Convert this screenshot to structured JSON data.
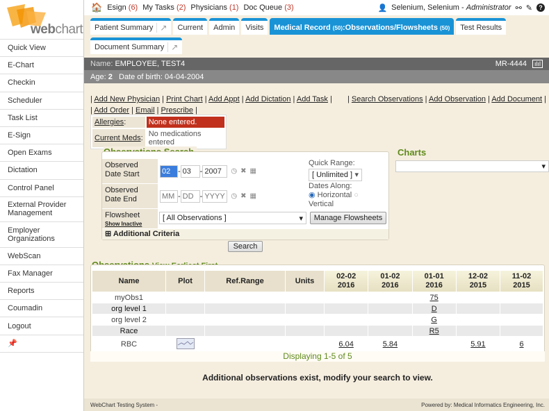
{
  "logo": {
    "text": "webchart",
    "brand_color": "#f5a21b"
  },
  "sidebar": {
    "items": [
      "Quick View",
      "E-Chart",
      "Checkin",
      "Scheduler",
      "Task List",
      "E-Sign",
      "Open Exams",
      "Dictation",
      "Control Panel",
      "External Provider Management",
      "Employer Organizations",
      "WebScan",
      "Fax Manager",
      "Reports",
      "Coumadin",
      "Logout"
    ],
    "pin_icon": "pin-icon"
  },
  "topbar": {
    "items": [
      {
        "label": "Esign",
        "count": "(6)"
      },
      {
        "label": "My Tasks",
        "count": "(2)"
      },
      {
        "label": "Physicians",
        "count": "(1)"
      },
      {
        "label": "Doc Queue",
        "count": "(3)"
      }
    ],
    "user": "Selenium, Selenium",
    "role": "Administrator"
  },
  "tabs": {
    "row1": [
      {
        "label": "Patient Summary"
      },
      {
        "label": "Current"
      },
      {
        "label": "Admin"
      },
      {
        "label": "Visits"
      },
      {
        "label": "Medical Record",
        "count1": "(50)",
        "sub": ":Observations/Flowsheets",
        "count2": "(50)"
      },
      {
        "label": "Test Results"
      }
    ],
    "row2": [
      {
        "label": "Document Summary"
      }
    ],
    "accent": "#1a93d6"
  },
  "patient": {
    "name_label": "Name:",
    "name": "EMPLOYEE, TEST4",
    "mr": "MR-4444",
    "age_label": "Age:",
    "age": "2",
    "dob_label": "Date of birth:",
    "dob": "04-04-2004"
  },
  "links": {
    "left1": [
      "Add New Physician",
      "Print Chart",
      "Add Appt",
      "Add Dictation",
      "Add Task"
    ],
    "left2": [
      "Add Order",
      "Email",
      "Prescribe"
    ],
    "right": [
      "Search Observations",
      "Add Observation",
      "Add Document"
    ]
  },
  "allergy": {
    "allergies_label": "Allergies",
    "allergies_value": "None entered.",
    "meds_label": "Current Meds",
    "meds_value": "No medications entered"
  },
  "search": {
    "title": "Observations Search",
    "start_label": "Observed Date Start",
    "start_mm": "02",
    "start_dd": "03",
    "start_yyyy": "2007",
    "end_label": "Observed Date End",
    "end_mm": "MM",
    "end_dd": "DD",
    "end_yyyy": "YYYY",
    "quick_range_label": "Quick Range:",
    "quick_range": "[ Unlimited ]",
    "dates_along_label": "Dates Along:",
    "horizontal": "Horizontal",
    "vertical": "Vertical",
    "flowsheet_label": "Flowsheet",
    "show_inactive": "Show Inactive",
    "flowsheet_value": "[ All Observations ]",
    "manage_button": "Manage Flowsheets",
    "additional": "Additional Criteria",
    "search_button": "Search"
  },
  "charts": {
    "title": "Charts",
    "select_value": ""
  },
  "observations": {
    "title": "Observations",
    "view_link": "View Earliest First",
    "headers": [
      "Name",
      "Plot",
      "Ref.Range",
      "Units"
    ],
    "dates": [
      [
        "02-02",
        "2016"
      ],
      [
        "01-02",
        "2016"
      ],
      [
        "01-01",
        "2016"
      ],
      [
        "12-02",
        "2015"
      ],
      [
        "11-02",
        "2015"
      ]
    ],
    "rows": [
      {
        "name": "myObs1",
        "values": [
          "",
          "",
          "75",
          "",
          ""
        ]
      },
      {
        "name": "org level 1",
        "values": [
          "",
          "",
          "D",
          "",
          ""
        ]
      },
      {
        "name": "org level 2",
        "values": [
          "",
          "",
          "G",
          "",
          ""
        ]
      },
      {
        "name": "Race",
        "values": [
          "",
          "",
          "R5",
          "",
          ""
        ]
      },
      {
        "name": "RBC",
        "plot": true,
        "values": [
          "6.04",
          "5.84",
          "",
          "5.91",
          "6"
        ]
      }
    ],
    "displaying": "Displaying 1-5 of 5",
    "more": "Additional observations exist, modify your search to view."
  },
  "footer": {
    "left": "WebChart Testing System -",
    "right": "Powered by: Medical Informatics Engineering, Inc."
  }
}
